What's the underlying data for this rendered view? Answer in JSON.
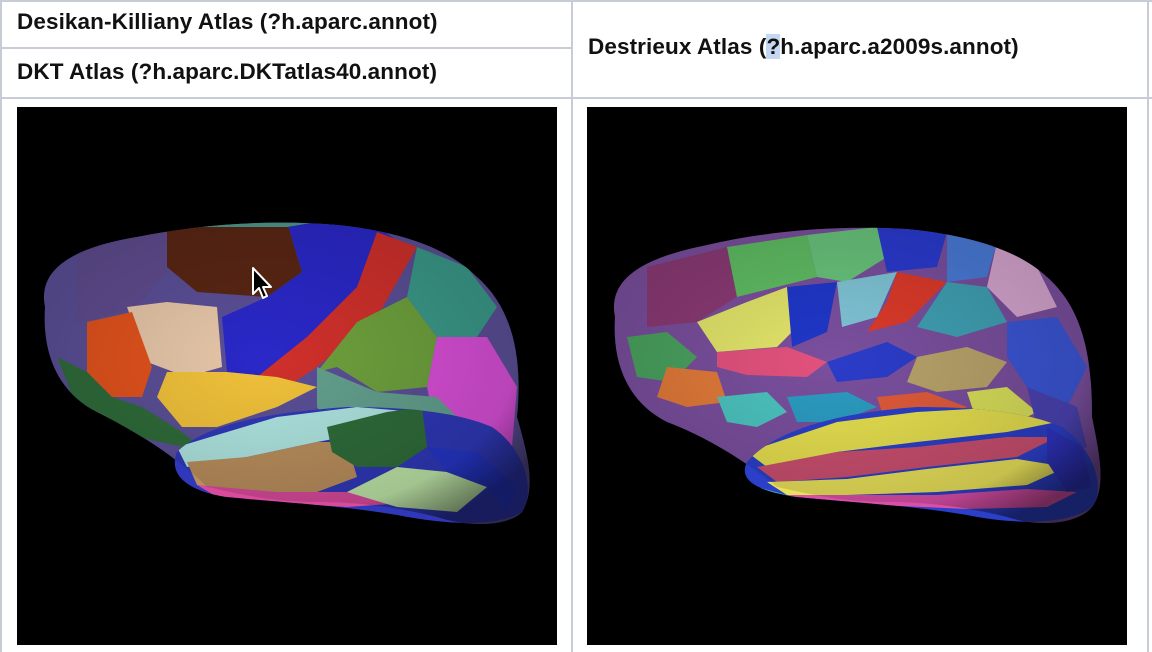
{
  "table": {
    "left_header_top": "Desikan-Killiany Atlas (?h.aparc.annot)",
    "left_header_bottom_pre": "DKT Atlas (?h.aparc.DKTatlas40.annot",
    "left_header_bottom_post": ")",
    "right_header_pre": "Destrieux Atlas (",
    "right_header_highlight": "?",
    "right_header_post": "h.aparc.a2009s.annot)"
  },
  "images": {
    "left": "desikan-killiany-brain-surface",
    "right": "destrieux-brain-surface"
  },
  "colors": {
    "border": "#c8ccd6",
    "background": "#000000",
    "selection": "#c4d8f3"
  }
}
